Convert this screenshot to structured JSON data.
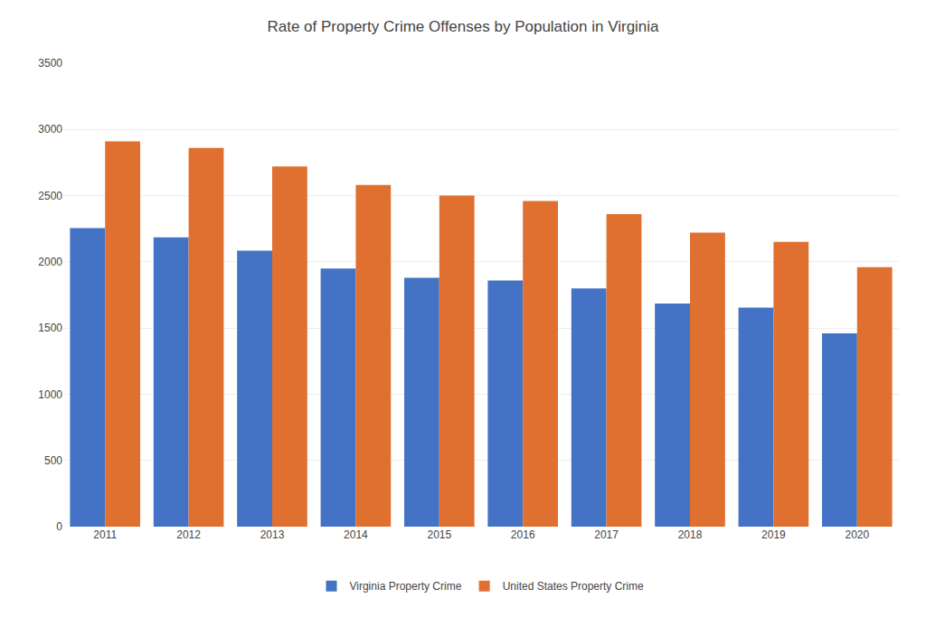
{
  "chart_data": {
    "type": "bar",
    "title": "Rate of Property Crime Offenses by Population in Virginia",
    "categories": [
      "2011",
      "2012",
      "2013",
      "2014",
      "2015",
      "2016",
      "2017",
      "2018",
      "2019",
      "2020"
    ],
    "series": [
      {
        "name": "Virginia Property Crime",
        "color": "#4472C4",
        "values": [
          2255,
          2185,
          2085,
          1950,
          1880,
          1860,
          1800,
          1685,
          1655,
          1460
        ]
      },
      {
        "name": "United States Property Crime",
        "color": "#E07030",
        "values": [
          2910,
          2860,
          2720,
          2580,
          2500,
          2460,
          2360,
          2220,
          2150,
          1960
        ]
      }
    ],
    "ylim": [
      0,
      3500
    ],
    "yticks": [
      0,
      500,
      1000,
      1500,
      2000,
      2500,
      3000,
      3500
    ],
    "grid": true,
    "legend": "bottom"
  }
}
